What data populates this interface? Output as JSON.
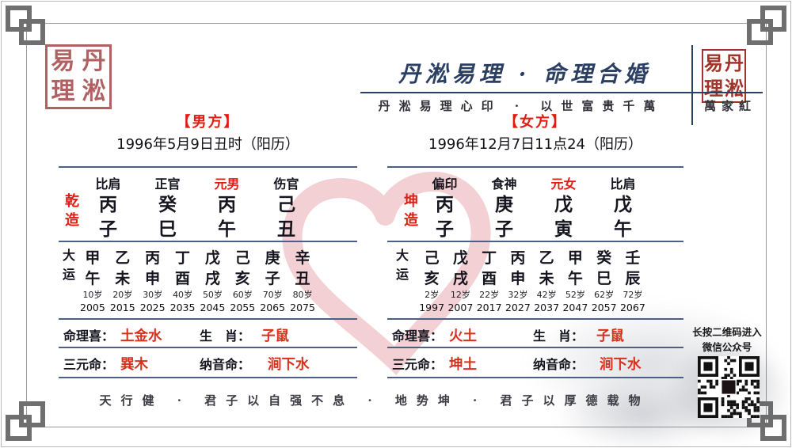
{
  "colors": {
    "accent_red": "#e01d12",
    "value_red": "#d7301f",
    "navy": "#2b3f63",
    "rule_blue": "#4d5f85",
    "seal_rose": "#b06262",
    "seal_red": "#a03428",
    "heart_pink": "#eec2c6",
    "frame_gray": "#6f6f6f"
  },
  "header": {
    "brand_title": "丹淞易理 · 命理合婚",
    "seal_script_band": "丹淞易理心印 · 以世富贵千萬",
    "seal_script_signature": "萬家紅",
    "corner_seal_text": "丹淞易理",
    "corner_seal_grid": [
      "易",
      "丹",
      "理",
      "淞"
    ]
  },
  "male": {
    "section_title": "【男方】",
    "birth_date": "1996年5月9日丑时（阳历）",
    "gender_label": "乾造",
    "pillar_labels": [
      "比肩",
      "正官",
      "元男",
      "伤官"
    ],
    "stems": [
      "丙",
      "癸",
      "丙",
      "己"
    ],
    "branches": [
      "子",
      "巳",
      "午",
      "丑"
    ],
    "dayun_label": "大运",
    "dayun_stems": [
      "甲",
      "乙",
      "丙",
      "丁",
      "戊",
      "己",
      "庚",
      "辛"
    ],
    "dayun_branches": [
      "午",
      "未",
      "申",
      "酉",
      "戌",
      "亥",
      "子",
      "丑"
    ],
    "dayun_ages": [
      "10岁",
      "20岁",
      "30岁",
      "40岁",
      "50岁",
      "60岁",
      "70岁",
      "80岁"
    ],
    "dayun_years": [
      "2005",
      "2015",
      "2025",
      "2035",
      "2045",
      "2055",
      "2065",
      "2075"
    ],
    "xi_label": "命理喜：",
    "xi_value": "土金水",
    "shengxiao_label": "生　肖：",
    "shengxiao_value": "子鼠",
    "sanyuan_label": "三元命：",
    "sanyuan_value": "巽木",
    "nayin_label": "纳音命：",
    "nayin_value": "涧下水"
  },
  "female": {
    "section_title": "【女方】",
    "birth_date": "1996年12月7日11点24（阳历）",
    "gender_label": "坤造",
    "pillar_labels": [
      "偏印",
      "食神",
      "元女",
      "比肩"
    ],
    "stems": [
      "丙",
      "庚",
      "戊",
      "戊"
    ],
    "branches": [
      "子",
      "子",
      "寅",
      "午"
    ],
    "dayun_label": "大运",
    "dayun_stems": [
      "己",
      "戊",
      "丁",
      "丙",
      "乙",
      "甲",
      "癸",
      "壬"
    ],
    "dayun_branches": [
      "亥",
      "戌",
      "酉",
      "申",
      "未",
      "午",
      "巳",
      "辰"
    ],
    "dayun_ages": [
      "2岁",
      "12岁",
      "22岁",
      "32岁",
      "42岁",
      "52岁",
      "62岁",
      "72岁"
    ],
    "dayun_years": [
      "1997",
      "2007",
      "2017",
      "2027",
      "2037",
      "2047",
      "2057",
      "2067"
    ],
    "xi_label": "命理喜：",
    "xi_value": "火土",
    "shengxiao_label": "生　肖：",
    "shengxiao_value": "子鼠",
    "sanyuan_label": "三元命：",
    "sanyuan_value": "坤土",
    "nayin_label": "纳音命：",
    "nayin_value": "涧下水"
  },
  "qr": {
    "caption_line1": "长按二维码进入",
    "caption_line2": "微信公众号"
  },
  "footer": {
    "seal_script_band": "天行健 · 君子以自强不息 · 地势坤 · 君子以厚德载物"
  }
}
